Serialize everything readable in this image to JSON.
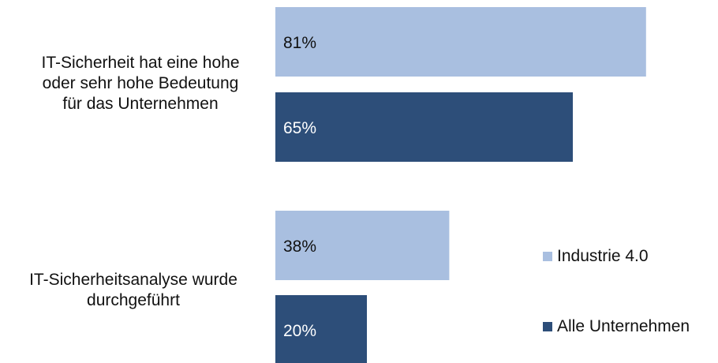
{
  "chart_data": {
    "type": "bar",
    "orientation": "horizontal",
    "categories": [
      "IT-Sicherheit hat eine hohe oder sehr hohe Bedeutung für das Unternehmen",
      "IT-Sicherheitsanalyse wurde durchgeführt"
    ],
    "category_lines": [
      [
        "IT-Sicherheit hat eine hohe",
        "oder sehr hohe Bedeutung",
        "für das Unternehmen"
      ],
      [
        "IT-Sicherheitsanalyse wurde",
        "durchgeführt"
      ]
    ],
    "series": [
      {
        "name": "Industrie 4.0",
        "values": [
          81,
          38
        ],
        "labels": [
          "81%",
          "38%"
        ],
        "color": "#a9bfe0"
      },
      {
        "name": "Alle Unternehmen",
        "values": [
          65,
          20
        ],
        "labels": [
          "65%",
          "20%"
        ],
        "color": "#2d4e79"
      }
    ],
    "unit": "%",
    "xlim": [
      0,
      100
    ],
    "grid": false,
    "legend": "right",
    "label_color": "#111111",
    "bar_label_color_light": "#111111",
    "bar_label_color_dark": "#ffffff"
  }
}
